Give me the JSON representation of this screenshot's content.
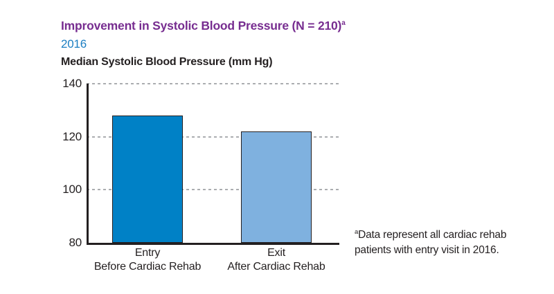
{
  "header": {
    "title": "Improvement in Systolic Blood Pressure (N = 210)",
    "title_superscript": "a",
    "year": "2016",
    "axis_title": "Median Systolic Blood Pressure (mm Hg)"
  },
  "chart_data": {
    "type": "bar",
    "title": "Improvement in Systolic Blood Pressure (N = 210)",
    "subtitle": "2016",
    "ylabel": "Median Systolic Blood Pressure (mm Hg)",
    "ylim": [
      80,
      140
    ],
    "yticks": [
      80,
      100,
      120,
      140
    ],
    "grid": "horizontal-dashed",
    "legend": "none",
    "categories": [
      {
        "line1": "Entry",
        "line2": "Before Cardiac Rehab"
      },
      {
        "line1": "Exit",
        "line2": "After Cardiac Rehab"
      }
    ],
    "values": [
      128,
      122
    ],
    "bar_colors": [
      "#0081C6",
      "#7FB1DF"
    ]
  },
  "footnote": {
    "superscript": "a",
    "line1": "Data represent all cardiac rehab",
    "line2": "patients with entry visit in 2016."
  },
  "colors": {
    "title_purple": "#772D90",
    "year_blue": "#1B7EC2",
    "bar_entry_blue": "#0081C6",
    "bar_exit_light_blue": "#7FB1DF",
    "bar_outline": "#231F20",
    "gridline_gray": "#ABADB0",
    "axis_black": "#231F20",
    "text_black": "#231F20"
  }
}
